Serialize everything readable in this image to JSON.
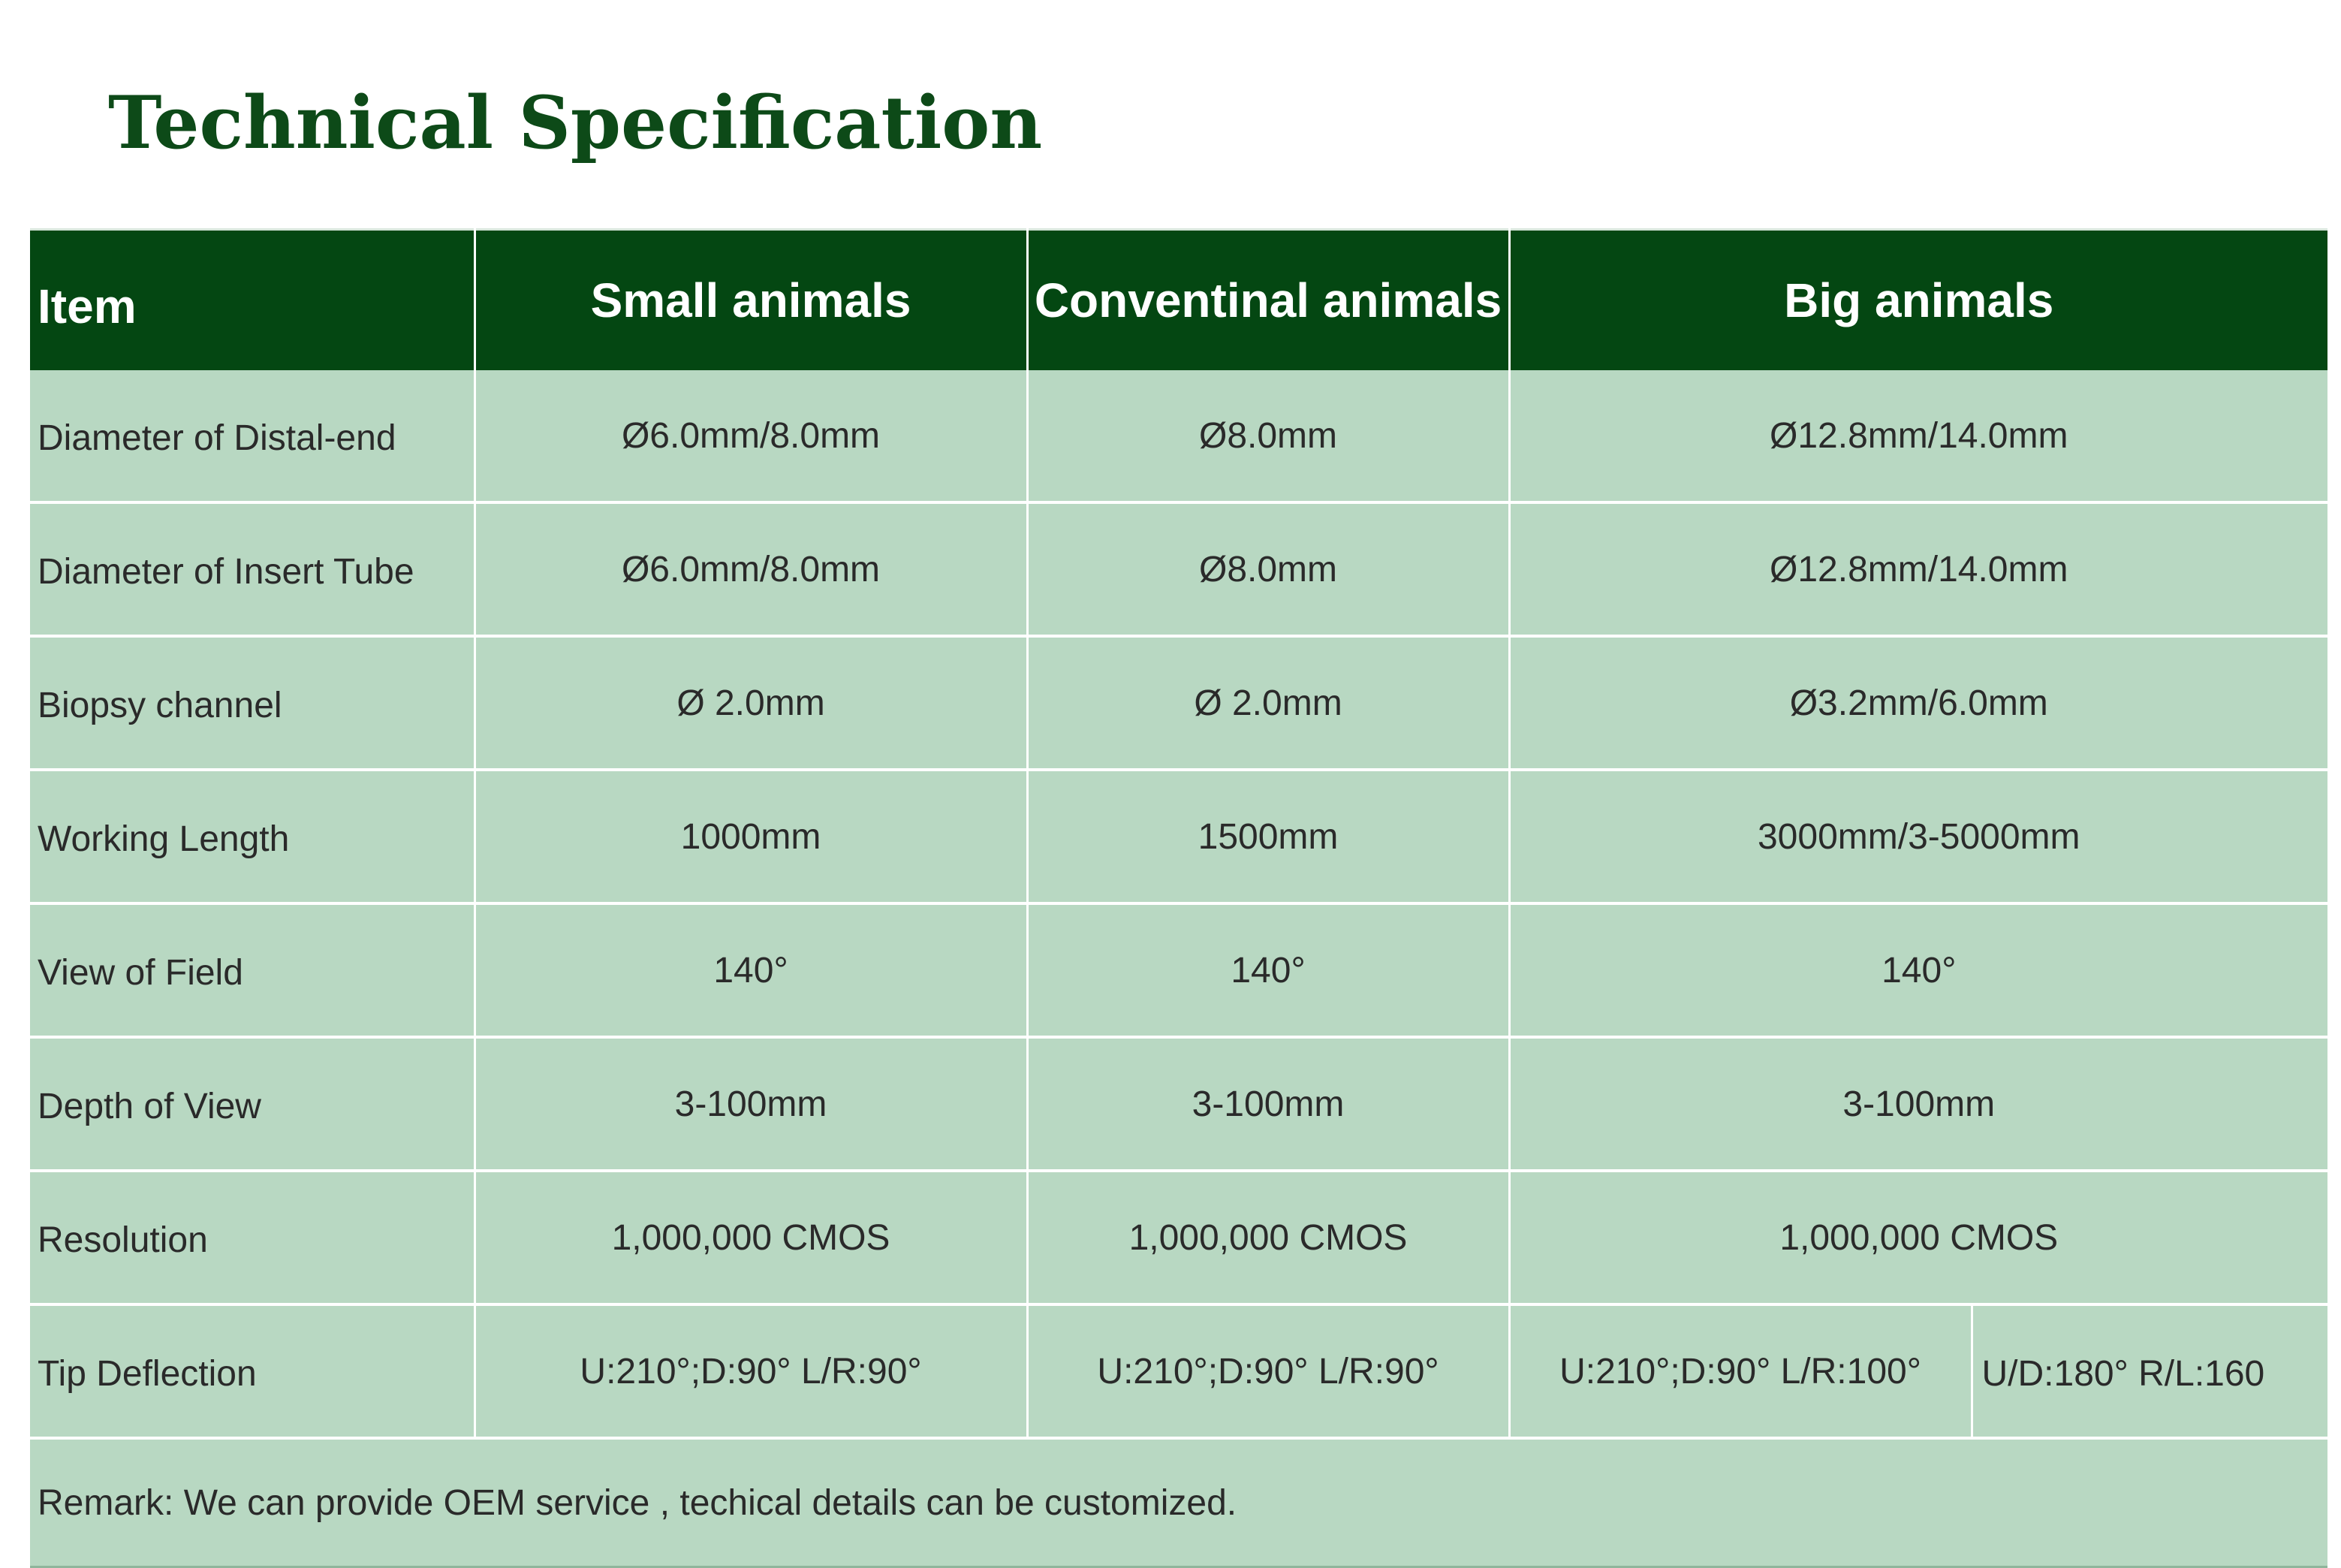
{
  "title": "Technical Specification",
  "colors": {
    "title": "#0d4a18",
    "header_bg": "#044712",
    "header_text": "#ffffff",
    "cell_bg": "#b8d8c2",
    "cell_text": "#2a2a2a"
  },
  "table": {
    "headers": [
      "Item",
      "Small animals",
      "Conventinal animals",
      "Big animals"
    ],
    "rows": [
      {
        "label": "Diameter of Distal-end",
        "small": "Ø6.0mm/8.0mm",
        "conventional": "Ø8.0mm",
        "big": "Ø12.8mm/14.0mm"
      },
      {
        "label": "Diameter of Insert Tube",
        "small": "Ø6.0mm/8.0mm",
        "conventional": "Ø8.0mm",
        "big": "Ø12.8mm/14.0mm"
      },
      {
        "label": "Biopsy channel",
        "small": "Ø 2.0mm",
        "conventional": "Ø 2.0mm",
        "big": "Ø3.2mm/6.0mm"
      },
      {
        "label": "Working Length",
        "small": "1000mm",
        "conventional": "1500mm",
        "big": "3000mm/3-5000mm"
      },
      {
        "label": "View of Field",
        "small": "140°",
        "conventional": "140°",
        "big": "140°"
      },
      {
        "label": "Depth of View",
        "small": "3-100mm",
        "conventional": "3-100mm",
        "big": "3-100mm"
      },
      {
        "label": "Resolution",
        "small": "1,000,000 CMOS",
        "conventional": "1,000,000 CMOS",
        "big": "1,000,000 CMOS"
      }
    ],
    "tip_deflection": {
      "label": "Tip Deflection",
      "small": "U:210°;D:90° L/R:90°",
      "conventional": "U:210°;D:90° L/R:90°",
      "big_a": "U:210°;D:90° L/R:100°",
      "big_b": "U/D:180° R/L:160"
    },
    "remark": "Remark: We can provide OEM service , techical details can be customized."
  }
}
